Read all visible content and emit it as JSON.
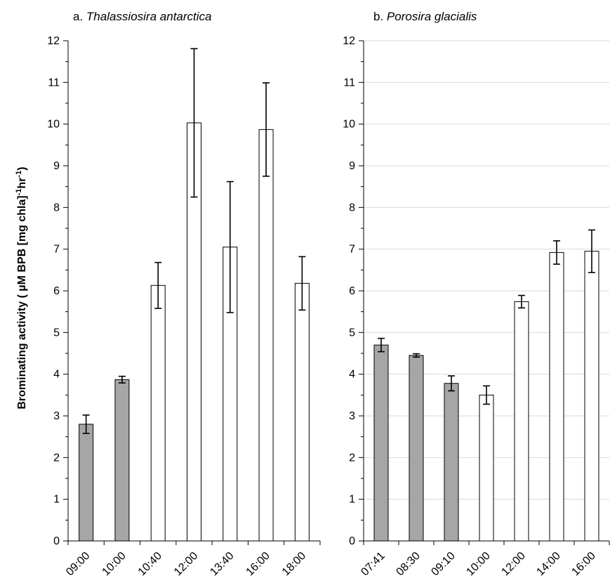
{
  "y_axis_title": {
    "main": "Brominating activity ( µM BPB [mg chla]",
    "sup1": "-1",
    "mid": "hr",
    "sup2": "-1",
    "end": ")"
  },
  "colors": {
    "dark_bar": "#a6a6a6",
    "light_bar": "#ffffff",
    "edge": "#000000",
    "grid": "#d9d9d9"
  },
  "chart_data": [
    {
      "type": "bar",
      "title_prefix": "a. ",
      "title_species": "Thalassiosira antarctica",
      "categories": [
        "09:00",
        "10:00",
        "10:40",
        "12:00",
        "13:40",
        "16:00",
        "18:00"
      ],
      "values": [
        2.8,
        3.87,
        6.13,
        10.03,
        7.05,
        9.87,
        6.18
      ],
      "errors": [
        0.22,
        0.08,
        0.55,
        1.78,
        1.57,
        1.12,
        0.64
      ],
      "fill": [
        "dark",
        "dark",
        "light",
        "light",
        "light",
        "light",
        "light"
      ],
      "ylim": [
        0,
        12
      ],
      "yticks": [
        "0",
        "1",
        "2",
        "3",
        "4",
        "5",
        "6",
        "7",
        "8",
        "9",
        "10",
        "11",
        "12"
      ],
      "grid": false
    },
    {
      "type": "bar",
      "title_prefix": "b. ",
      "title_species": "Porosira glacialis",
      "categories": [
        "07:41",
        "08:30",
        "09:10",
        "10:00",
        "12:00",
        "14:00",
        "16:00"
      ],
      "values": [
        4.7,
        4.45,
        3.78,
        3.5,
        5.74,
        6.92,
        6.95
      ],
      "errors": [
        0.16,
        0.04,
        0.18,
        0.22,
        0.15,
        0.28,
        0.51
      ],
      "fill": [
        "dark",
        "dark",
        "dark",
        "light",
        "light",
        "light",
        "light"
      ],
      "ylim": [
        0,
        12
      ],
      "yticks": [
        "0",
        "1",
        "2",
        "3",
        "4",
        "5",
        "6",
        "7",
        "8",
        "9",
        "10",
        "11",
        "12"
      ],
      "grid": true
    }
  ]
}
